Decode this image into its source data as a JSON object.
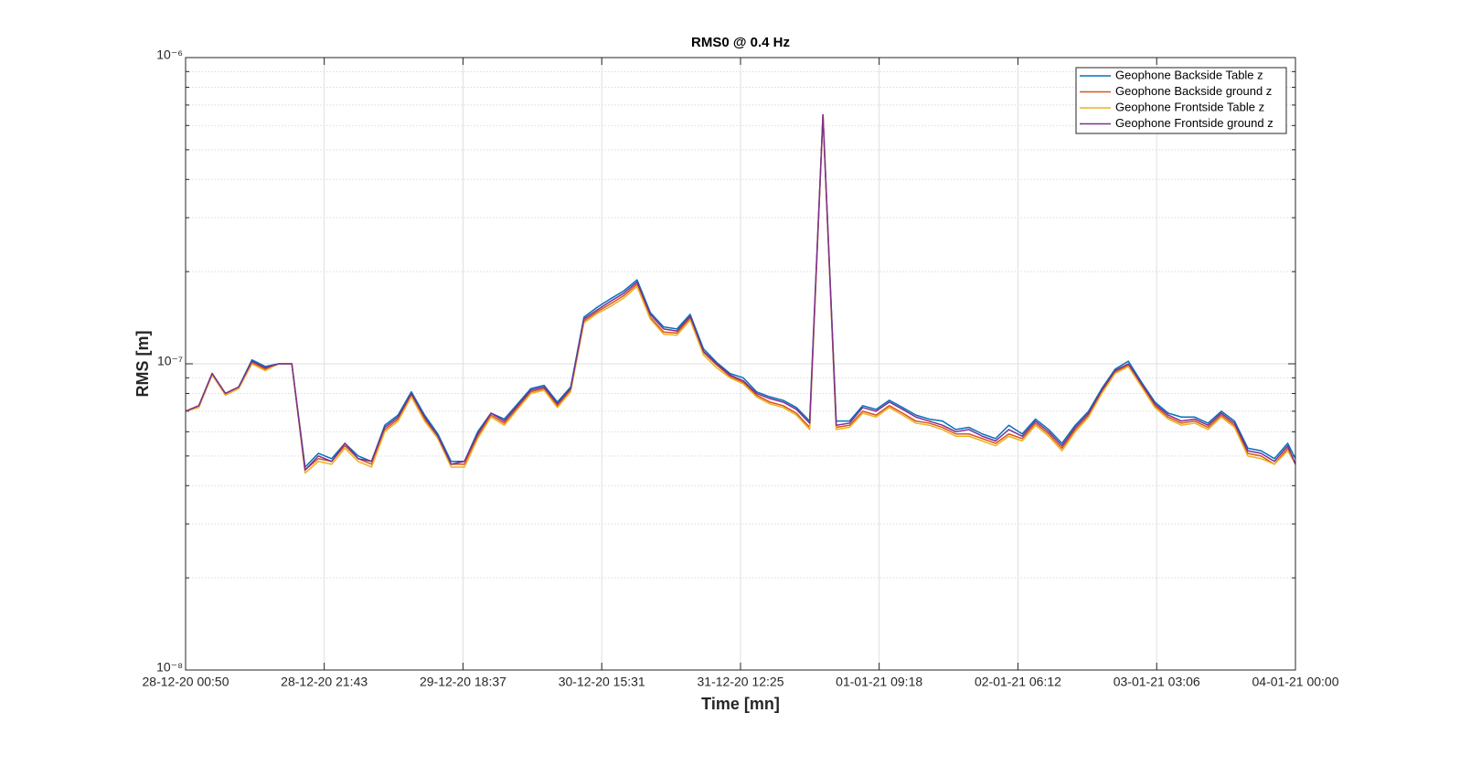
{
  "chart_data": {
    "type": "line",
    "title": "RMS0 @ 0.4 Hz",
    "xlabel": "Time [mn]",
    "ylabel": "RMS [m]",
    "log_y": true,
    "grid": true,
    "minor_grid": true,
    "legend": "upper right",
    "xlim": [
      "2020-12-28T00:50",
      "2021-01-04T00:00"
    ],
    "xticks": [
      {
        "value": "2020-12-28T00:50",
        "label": "28-12-20 00:50"
      },
      {
        "value": "2020-12-28T21:43",
        "label": "28-12-20 21:43"
      },
      {
        "value": "2020-12-29T18:37",
        "label": "29-12-20 18:37"
      },
      {
        "value": "2020-12-30T15:31",
        "label": "30-12-20 15:31"
      },
      {
        "value": "2020-12-31T12:25",
        "label": "31-12-20 12:25"
      },
      {
        "value": "2021-01-01T09:18",
        "label": "01-01-21 09:18"
      },
      {
        "value": "2021-01-02T06:12",
        "label": "02-01-21 06:12"
      },
      {
        "value": "2021-01-03T03:06",
        "label": "03-01-21 03:06"
      },
      {
        "value": "2021-01-04T00:00",
        "label": "04-01-21 00:00"
      }
    ],
    "ylim": [
      1e-08,
      1e-06
    ],
    "yticks": [
      {
        "value": 1e-08,
        "label": "10⁻⁸"
      },
      {
        "value": 1e-07,
        "label": "10⁻⁷"
      },
      {
        "value": 1e-06,
        "label": "10⁻⁶"
      }
    ],
    "x": [
      "2020-12-28T00:50",
      "2020-12-28T02:50",
      "2020-12-28T04:50",
      "2020-12-28T06:50",
      "2020-12-28T08:50",
      "2020-12-28T10:50",
      "2020-12-28T12:50",
      "2020-12-28T14:50",
      "2020-12-28T16:50",
      "2020-12-28T18:50",
      "2020-12-28T20:50",
      "2020-12-28T22:50",
      "2020-12-29T00:50",
      "2020-12-29T02:50",
      "2020-12-29T04:50",
      "2020-12-29T06:50",
      "2020-12-29T08:50",
      "2020-12-29T10:50",
      "2020-12-29T12:50",
      "2020-12-29T14:50",
      "2020-12-29T16:50",
      "2020-12-29T18:50",
      "2020-12-29T20:50",
      "2020-12-29T22:50",
      "2020-12-30T00:50",
      "2020-12-30T02:50",
      "2020-12-30T04:50",
      "2020-12-30T06:50",
      "2020-12-30T08:50",
      "2020-12-30T10:50",
      "2020-12-30T12:50",
      "2020-12-30T14:50",
      "2020-12-30T16:50",
      "2020-12-30T18:50",
      "2020-12-30T20:50",
      "2020-12-30T22:50",
      "2020-12-31T00:50",
      "2020-12-31T02:50",
      "2020-12-31T04:50",
      "2020-12-31T06:50",
      "2020-12-31T08:50",
      "2020-12-31T10:50",
      "2020-12-31T12:50",
      "2020-12-31T14:50",
      "2020-12-31T16:50",
      "2020-12-31T18:50",
      "2020-12-31T20:50",
      "2020-12-31T22:50",
      "2021-01-01T00:50",
      "2021-01-01T02:50",
      "2021-01-01T04:50",
      "2021-01-01T06:50",
      "2021-01-01T08:50",
      "2021-01-01T10:50",
      "2021-01-01T12:50",
      "2021-01-01T14:50",
      "2021-01-01T16:50",
      "2021-01-01T18:50",
      "2021-01-01T20:50",
      "2021-01-01T22:50",
      "2021-01-02T00:50",
      "2021-01-02T02:50",
      "2021-01-02T04:50",
      "2021-01-02T06:50",
      "2021-01-02T08:50",
      "2021-01-02T10:50",
      "2021-01-02T12:50",
      "2021-01-02T14:50",
      "2021-01-02T16:50",
      "2021-01-02T18:50",
      "2021-01-02T20:50",
      "2021-01-02T22:50",
      "2021-01-03T00:50",
      "2021-01-03T02:50",
      "2021-01-03T04:50",
      "2021-01-03T06:50",
      "2021-01-03T08:50",
      "2021-01-03T10:50",
      "2021-01-03T12:50",
      "2021-01-03T14:50",
      "2021-01-03T16:50",
      "2021-01-03T18:50",
      "2021-01-03T20:50",
      "2021-01-03T22:50",
      "2021-01-04T00:00"
    ],
    "series": [
      {
        "name": "Geophone Backside Table z",
        "color": "#0072BD",
        "values": [
          7e-08,
          7.3e-08,
          9.3e-08,
          8e-08,
          8.4e-08,
          1.03e-07,
          9.8e-08,
          1e-07,
          1e-07,
          4.6e-08,
          5.1e-08,
          4.9e-08,
          5.5e-08,
          5e-08,
          4.8e-08,
          6.3e-08,
          6.8e-08,
          8.1e-08,
          6.8e-08,
          5.9e-08,
          4.8e-08,
          4.8e-08,
          6e-08,
          6.9e-08,
          6.6e-08,
          7.4e-08,
          8.3e-08,
          8.5e-08,
          7.5e-08,
          8.4e-08,
          1.42e-07,
          1.53e-07,
          1.63e-07,
          1.73e-07,
          1.88e-07,
          1.47e-07,
          1.32e-07,
          1.3e-07,
          1.45e-07,
          1.12e-07,
          1.01e-07,
          9.3e-08,
          9e-08,
          8.1e-08,
          7.8e-08,
          7.6e-08,
          7.2e-08,
          6.5e-08,
          6.5e-07,
          6.5e-08,
          6.5e-08,
          7.3e-08,
          7.1e-08,
          7.6e-08,
          7.2e-08,
          6.8e-08,
          6.6e-08,
          6.5e-08,
          6.1e-08,
          6.2e-08,
          5.9e-08,
          5.7e-08,
          6.3e-08,
          5.9e-08,
          6.6e-08,
          6.1e-08,
          5.5e-08,
          6.3e-08,
          7e-08,
          8.3e-08,
          9.6e-08,
          1.02e-07,
          8.7e-08,
          7.5e-08,
          6.9e-08,
          6.7e-08,
          6.7e-08,
          6.4e-08,
          7e-08,
          6.5e-08,
          5.3e-08,
          5.2e-08,
          4.9e-08,
          5.5e-08,
          4.9e-08
        ]
      },
      {
        "name": "Geophone Backside ground z",
        "color": "#D95319",
        "values": [
          7e-08,
          7.3e-08,
          9.2e-08,
          8e-08,
          8.4e-08,
          1.01e-07,
          9.6e-08,
          1e-07,
          1e-07,
          4.5e-08,
          4.9e-08,
          4.8e-08,
          5.4e-08,
          4.9e-08,
          4.7e-08,
          6.1e-08,
          6.6e-08,
          7.9e-08,
          6.6e-08,
          5.8e-08,
          4.7e-08,
          4.7e-08,
          5.8e-08,
          6.8e-08,
          6.4e-08,
          7.2e-08,
          8.1e-08,
          8.3e-08,
          7.3e-08,
          8.2e-08,
          1.38e-07,
          1.48e-07,
          1.57e-07,
          1.67e-07,
          1.82e-07,
          1.42e-07,
          1.27e-07,
          1.26e-07,
          1.41e-07,
          1.09e-07,
          9.9e-08,
          9.1e-08,
          8.7e-08,
          7.9e-08,
          7.5e-08,
          7.3e-08,
          6.9e-08,
          6.2e-08,
          6.5e-07,
          6.2e-08,
          6.3e-08,
          7e-08,
          6.8e-08,
          7.3e-08,
          6.9e-08,
          6.5e-08,
          6.4e-08,
          6.2e-08,
          5.9e-08,
          5.9e-08,
          5.7e-08,
          5.5e-08,
          5.9e-08,
          5.7e-08,
          6.4e-08,
          5.9e-08,
          5.3e-08,
          6.1e-08,
          6.8e-08,
          8.1e-08,
          9.4e-08,
          9.9e-08,
          8.5e-08,
          7.3e-08,
          6.7e-08,
          6.4e-08,
          6.5e-08,
          6.2e-08,
          6.8e-08,
          6.3e-08,
          5.1e-08,
          5e-08,
          4.7e-08,
          5.3e-08,
          4.7e-08
        ]
      },
      {
        "name": "Geophone Frontside Table z",
        "color": "#EDB120",
        "values": [
          7e-08,
          7.2e-08,
          9.2e-08,
          7.9e-08,
          8.3e-08,
          1e-07,
          9.5e-08,
          1e-07,
          1e-07,
          4.4e-08,
          4.8e-08,
          4.7e-08,
          5.3e-08,
          4.8e-08,
          4.6e-08,
          6e-08,
          6.5e-08,
          7.8e-08,
          6.5e-08,
          5.7e-08,
          4.6e-08,
          4.6e-08,
          5.7e-08,
          6.7e-08,
          6.3e-08,
          7.1e-08,
          8e-08,
          8.2e-08,
          7.2e-08,
          8.1e-08,
          1.36e-07,
          1.46e-07,
          1.54e-07,
          1.64e-07,
          1.79e-07,
          1.4e-07,
          1.25e-07,
          1.24e-07,
          1.39e-07,
          1.07e-07,
          9.7e-08,
          9e-08,
          8.6e-08,
          7.8e-08,
          7.4e-08,
          7.2e-08,
          6.8e-08,
          6.1e-08,
          6.5e-07,
          6.1e-08,
          6.2e-08,
          6.9e-08,
          6.7e-08,
          7.2e-08,
          6.8e-08,
          6.4e-08,
          6.3e-08,
          6.1e-08,
          5.8e-08,
          5.8e-08,
          5.6e-08,
          5.4e-08,
          5.8e-08,
          5.6e-08,
          6.3e-08,
          5.8e-08,
          5.2e-08,
          6e-08,
          6.7e-08,
          8e-08,
          9.3e-08,
          9.8e-08,
          8.4e-08,
          7.2e-08,
          6.6e-08,
          6.3e-08,
          6.4e-08,
          6.1e-08,
          6.7e-08,
          6.2e-08,
          5e-08,
          4.9e-08,
          4.7e-08,
          5.2e-08,
          4.7e-08
        ]
      },
      {
        "name": "Geophone Frontside ground z",
        "color": "#7E2F8E",
        "values": [
          7e-08,
          7.3e-08,
          9.3e-08,
          8e-08,
          8.4e-08,
          1.02e-07,
          9.7e-08,
          1e-07,
          1e-07,
          4.5e-08,
          5e-08,
          4.8e-08,
          5.5e-08,
          4.9e-08,
          4.8e-08,
          6.2e-08,
          6.7e-08,
          8e-08,
          6.7e-08,
          5.8e-08,
          4.7e-08,
          4.8e-08,
          5.9e-08,
          6.9e-08,
          6.5e-08,
          7.3e-08,
          8.2e-08,
          8.4e-08,
          7.4e-08,
          8.3e-08,
          1.4e-07,
          1.5e-07,
          1.6e-07,
          1.7e-07,
          1.85e-07,
          1.45e-07,
          1.3e-07,
          1.28e-07,
          1.43e-07,
          1.1e-07,
          1e-07,
          9.2e-08,
          8.8e-08,
          8e-08,
          7.7e-08,
          7.5e-08,
          7.1e-08,
          6.4e-08,
          6.5e-07,
          6.3e-08,
          6.4e-08,
          7.2e-08,
          7e-08,
          7.5e-08,
          7.1e-08,
          6.7e-08,
          6.5e-08,
          6.3e-08,
          6e-08,
          6.1e-08,
          5.8e-08,
          5.6e-08,
          6.1e-08,
          5.8e-08,
          6.5e-08,
          6e-08,
          5.4e-08,
          6.2e-08,
          6.9e-08,
          8.2e-08,
          9.5e-08,
          1e-07,
          8.6e-08,
          7.4e-08,
          6.8e-08,
          6.5e-08,
          6.6e-08,
          6.3e-08,
          6.9e-08,
          6.4e-08,
          5.2e-08,
          5.1e-08,
          4.8e-08,
          5.4e-08,
          4.7e-08
        ]
      }
    ]
  }
}
